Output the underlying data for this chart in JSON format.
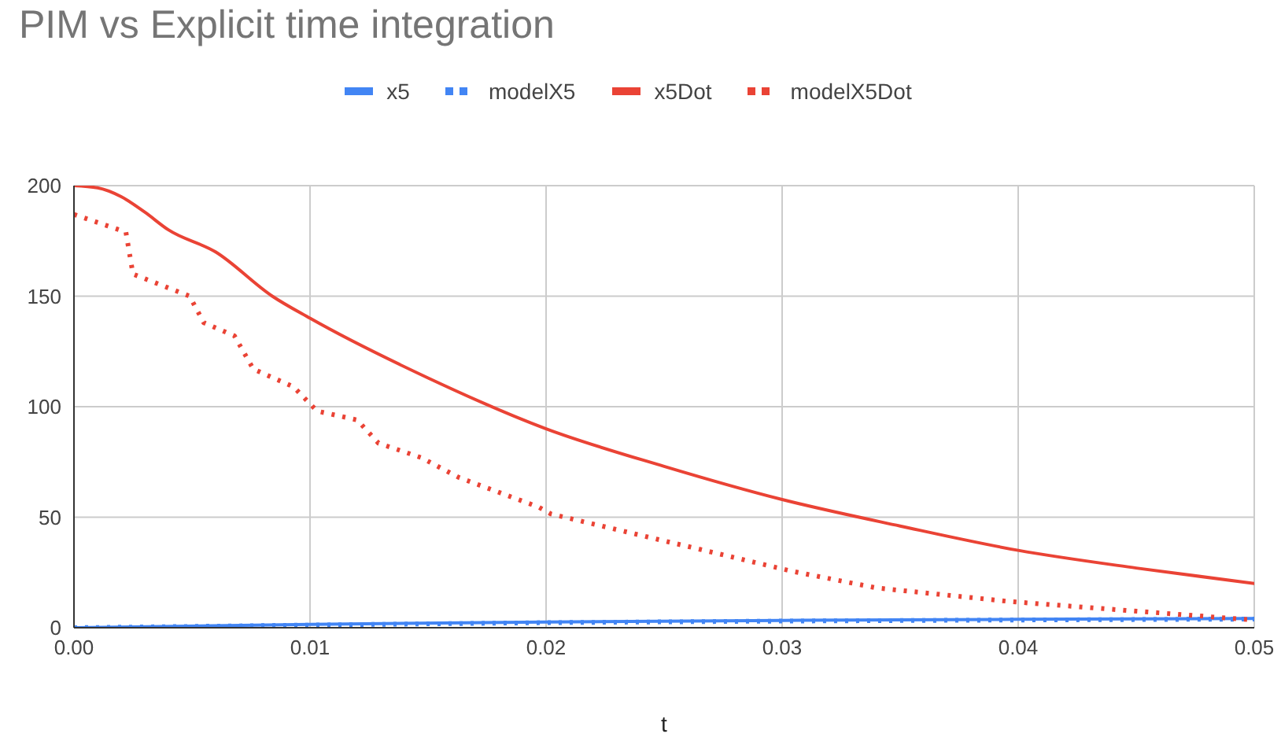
{
  "chart_data": {
    "type": "line",
    "title": "PIM vs Explicit time integration",
    "xlabel": "t",
    "xlim": [
      0,
      0.05
    ],
    "xticks": [
      {
        "value": 0,
        "label": "0.00"
      },
      {
        "value": 0.01,
        "label": "0.01"
      },
      {
        "value": 0.02,
        "label": "0.02"
      },
      {
        "value": 0.03,
        "label": "0.03"
      },
      {
        "value": 0.04,
        "label": "0.04"
      },
      {
        "value": 0.05,
        "label": "0.05"
      }
    ],
    "ylim": [
      0,
      200
    ],
    "yticks": [
      0,
      50,
      100,
      150,
      200
    ],
    "grid": true,
    "legend": "top",
    "marker": "none",
    "series": [
      {
        "name": "x5",
        "color": "#4285f4",
        "line_style": "solid",
        "x": [
          0,
          0.01,
          0.02,
          0.03,
          0.04,
          0.05
        ],
        "values": [
          0,
          1.5,
          2.6,
          3.3,
          3.8,
          4.2
        ]
      },
      {
        "name": "modelX5",
        "color": "#4285f4",
        "line_style": "dotted",
        "x": [
          0,
          0.01,
          0.02,
          0.03,
          0.04,
          0.05
        ],
        "values": [
          0,
          1.2,
          2.3,
          3,
          3.5,
          3.9
        ]
      },
      {
        "name": "x5Dot",
        "color": "#ea4335",
        "line_style": "solid",
        "x": [
          0,
          0.001,
          0.002,
          0.003,
          0.004,
          0.006,
          0.0084,
          0.01,
          0.015,
          0.02,
          0.025,
          0.03,
          0.035,
          0.04,
          0.045,
          0.05
        ],
        "values": [
          200,
          199,
          195,
          188,
          180,
          170,
          150,
          140,
          113,
          90,
          73,
          58,
          46,
          35,
          27,
          20
        ]
      },
      {
        "name": "modelX5Dot",
        "color": "#ea4335",
        "line_style": "dotted",
        "x": [
          0,
          0.0022,
          0.0025,
          0.0049,
          0.0055,
          0.0068,
          0.0076,
          0.0093,
          0.0103,
          0.012,
          0.0129,
          0.0147,
          0.0163,
          0.0197,
          0.0202,
          0.0304,
          0.034,
          0.0397,
          0.0497
        ],
        "values": [
          187,
          179,
          160,
          150,
          138,
          132,
          117,
          109,
          98,
          94,
          83.5,
          77,
          68,
          54.5,
          51.5,
          25.6,
          18,
          11.8,
          3.7
        ]
      }
    ]
  }
}
